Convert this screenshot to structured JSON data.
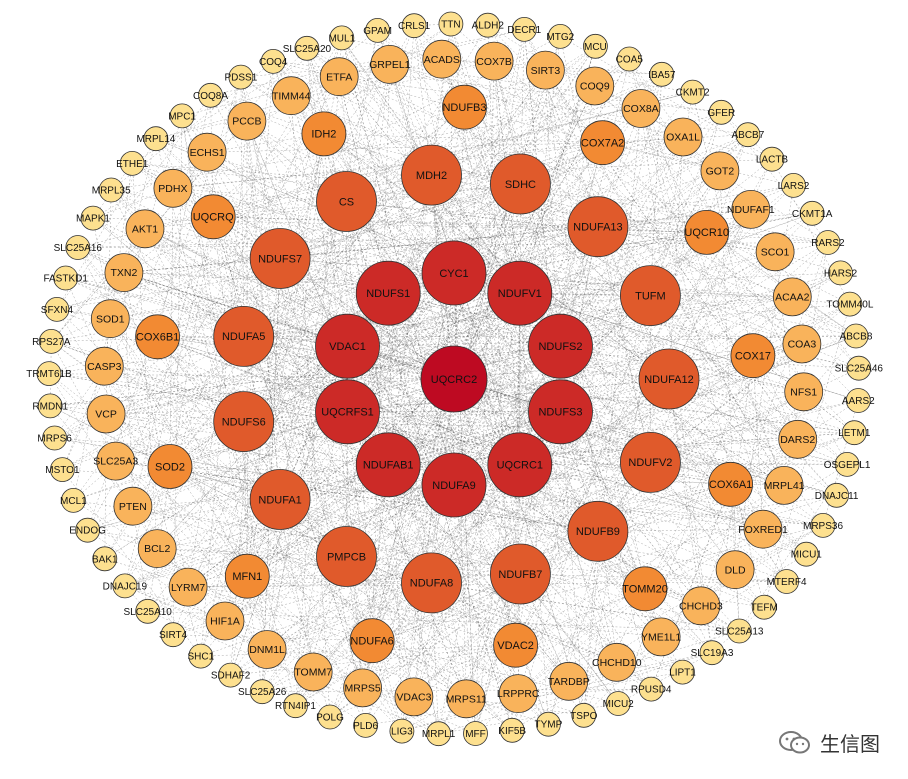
{
  "colors": {
    "ring0": "#be0a22",
    "ring1": "#cc2a27",
    "ring2": "#e05a2b",
    "ring3": "#f28a33",
    "ring4": "#f9b35b",
    "ring5": "#fde08f"
  },
  "rings": [
    {
      "level": 0,
      "nodes": [
        "UQCRC2"
      ]
    },
    {
      "level": 1,
      "nodes": [
        "CYC1",
        "NDUFV1",
        "NDUFS2",
        "NDUFS3",
        "UQCRC1",
        "NDUFA9",
        "NDUFAB1",
        "UQCRFS1",
        "VDAC1",
        "NDUFS1"
      ]
    },
    {
      "level": 2,
      "nodes": [
        "SDHC",
        "NDUFA13",
        "TUFM",
        "NDUFA12",
        "NDUFV2",
        "NDUFB9",
        "NDUFB7",
        "NDUFA8",
        "PMPCB",
        "NDUFA1",
        "NDUFS6",
        "NDUFA5",
        "NDUFS7",
        "CS",
        "MDH2"
      ]
    },
    {
      "level": 3,
      "nodes": [
        "NDUFB3",
        "COX7A2",
        "UQCR10",
        "COX17",
        "COX6A1",
        "TOMM20",
        "VDAC2",
        "NDUFA6",
        "MFN1",
        "SOD2",
        "COX6B1",
        "UQCRQ",
        "IDH2"
      ]
    },
    {
      "level": 4,
      "nodes": [
        "ACADS",
        "COX7B",
        "SIRT3",
        "COQ9",
        "COX8A",
        "OXA1L",
        "GOT2",
        "NDUFAF1",
        "SCO1",
        "ACAA2",
        "COA3",
        "NFS1",
        "DARS2",
        "MRPL41",
        "FOXRED1",
        "DLD",
        "CHCHD3",
        "YME1L1",
        "CHCHD10",
        "TARDBP",
        "LRPPRC",
        "MRPS11",
        "VDAC3",
        "MRPS5",
        "TOMM7",
        "DNM1L",
        "HIF1A",
        "LYRM7",
        "BCL2",
        "PTEN",
        "SLC25A3",
        "VCP",
        "CASP3",
        "SOD1",
        "TXN2",
        "AKT1",
        "PDHX",
        "ECHS1",
        "PCCB",
        "TIMM44",
        "ETFA",
        "GRPEL1"
      ]
    },
    {
      "level": 5,
      "nodes": [
        "DECR1",
        "MTG2",
        "MCU",
        "COA5",
        "IBA57",
        "CKMT2",
        "GFER",
        "ABCB7",
        "LACTB",
        "LARS2",
        "CKMT1A",
        "RARS2",
        "HARS2",
        "TOMM40L",
        "ABCB8",
        "SLC25A46",
        "AARS2",
        "LETM1",
        "OSGEPL1",
        "DNAJC11",
        "MRPS36",
        "MICU1",
        "MTERF4",
        "TEFM",
        "SLC25A13",
        "SLC19A3",
        "LIPT1",
        "RPUSD4",
        "MICU2",
        "TSPO",
        "TYMP",
        "KIF5B",
        "MFF",
        "MRPL1",
        "LIG3",
        "PLD6",
        "POLG",
        "RTN4IP1",
        "SLC25A26",
        "SDHAF2",
        "SHC1",
        "SIRT4",
        "SLC25A10",
        "DNAJC19",
        "BAK1",
        "ENDOG",
        "MCL1",
        "MSTO1",
        "MRPS6",
        "RMDN1",
        "TRMT61B",
        "RPS27A",
        "SFXN4",
        "FASTKD1",
        "SLC25A16",
        "MAPK1",
        "MRPL35",
        "ETHE1",
        "MRPL14",
        "MPC1",
        "COQ8A",
        "PDSS1",
        "COQ4",
        "SLC25A20",
        "MUL1",
        "GPAM",
        "CRLS1",
        "TTN",
        "ALDH2"
      ]
    }
  ],
  "watermark": {
    "text": "生信图"
  }
}
